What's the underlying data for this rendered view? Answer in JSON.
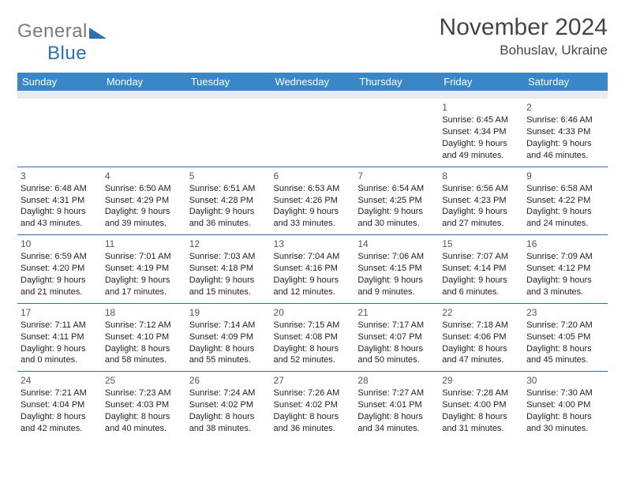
{
  "logo": {
    "part1": "General",
    "part2": "Blue"
  },
  "header": {
    "month_title": "November 2024",
    "location": "Bohuslav, Ukraine"
  },
  "styling": {
    "header_bg": "#3a87c8",
    "header_fg": "#ffffff",
    "cell_border": "#2f6fb0",
    "spacer_bg": "#e9eced",
    "text_color": "#222222",
    "title_color": "#454545",
    "logo_gray": "#7a7a7a",
    "logo_blue": "#2f6fb0",
    "day_header_fontsize": 13,
    "cell_fontsize": 11,
    "title_fontsize": 30
  },
  "day_headers": [
    "Sunday",
    "Monday",
    "Tuesday",
    "Wednesday",
    "Thursday",
    "Friday",
    "Saturday"
  ],
  "weeks": [
    [
      null,
      null,
      null,
      null,
      null,
      {
        "n": "1",
        "sr": "6:45 AM",
        "ss": "4:34 PM",
        "dl": "9 hours and 49 minutes."
      },
      {
        "n": "2",
        "sr": "6:46 AM",
        "ss": "4:33 PM",
        "dl": "9 hours and 46 minutes."
      }
    ],
    [
      {
        "n": "3",
        "sr": "6:48 AM",
        "ss": "4:31 PM",
        "dl": "9 hours and 43 minutes."
      },
      {
        "n": "4",
        "sr": "6:50 AM",
        "ss": "4:29 PM",
        "dl": "9 hours and 39 minutes."
      },
      {
        "n": "5",
        "sr": "6:51 AM",
        "ss": "4:28 PM",
        "dl": "9 hours and 36 minutes."
      },
      {
        "n": "6",
        "sr": "6:53 AM",
        "ss": "4:26 PM",
        "dl": "9 hours and 33 minutes."
      },
      {
        "n": "7",
        "sr": "6:54 AM",
        "ss": "4:25 PM",
        "dl": "9 hours and 30 minutes."
      },
      {
        "n": "8",
        "sr": "6:56 AM",
        "ss": "4:23 PM",
        "dl": "9 hours and 27 minutes."
      },
      {
        "n": "9",
        "sr": "6:58 AM",
        "ss": "4:22 PM",
        "dl": "9 hours and 24 minutes."
      }
    ],
    [
      {
        "n": "10",
        "sr": "6:59 AM",
        "ss": "4:20 PM",
        "dl": "9 hours and 21 minutes."
      },
      {
        "n": "11",
        "sr": "7:01 AM",
        "ss": "4:19 PM",
        "dl": "9 hours and 17 minutes."
      },
      {
        "n": "12",
        "sr": "7:03 AM",
        "ss": "4:18 PM",
        "dl": "9 hours and 15 minutes."
      },
      {
        "n": "13",
        "sr": "7:04 AM",
        "ss": "4:16 PM",
        "dl": "9 hours and 12 minutes."
      },
      {
        "n": "14",
        "sr": "7:06 AM",
        "ss": "4:15 PM",
        "dl": "9 hours and 9 minutes."
      },
      {
        "n": "15",
        "sr": "7:07 AM",
        "ss": "4:14 PM",
        "dl": "9 hours and 6 minutes."
      },
      {
        "n": "16",
        "sr": "7:09 AM",
        "ss": "4:12 PM",
        "dl": "9 hours and 3 minutes."
      }
    ],
    [
      {
        "n": "17",
        "sr": "7:11 AM",
        "ss": "4:11 PM",
        "dl": "9 hours and 0 minutes."
      },
      {
        "n": "18",
        "sr": "7:12 AM",
        "ss": "4:10 PM",
        "dl": "8 hours and 58 minutes."
      },
      {
        "n": "19",
        "sr": "7:14 AM",
        "ss": "4:09 PM",
        "dl": "8 hours and 55 minutes."
      },
      {
        "n": "20",
        "sr": "7:15 AM",
        "ss": "4:08 PM",
        "dl": "8 hours and 52 minutes."
      },
      {
        "n": "21",
        "sr": "7:17 AM",
        "ss": "4:07 PM",
        "dl": "8 hours and 50 minutes."
      },
      {
        "n": "22",
        "sr": "7:18 AM",
        "ss": "4:06 PM",
        "dl": "8 hours and 47 minutes."
      },
      {
        "n": "23",
        "sr": "7:20 AM",
        "ss": "4:05 PM",
        "dl": "8 hours and 45 minutes."
      }
    ],
    [
      {
        "n": "24",
        "sr": "7:21 AM",
        "ss": "4:04 PM",
        "dl": "8 hours and 42 minutes."
      },
      {
        "n": "25",
        "sr": "7:23 AM",
        "ss": "4:03 PM",
        "dl": "8 hours and 40 minutes."
      },
      {
        "n": "26",
        "sr": "7:24 AM",
        "ss": "4:02 PM",
        "dl": "8 hours and 38 minutes."
      },
      {
        "n": "27",
        "sr": "7:26 AM",
        "ss": "4:02 PM",
        "dl": "8 hours and 36 minutes."
      },
      {
        "n": "28",
        "sr": "7:27 AM",
        "ss": "4:01 PM",
        "dl": "8 hours and 34 minutes."
      },
      {
        "n": "29",
        "sr": "7:28 AM",
        "ss": "4:00 PM",
        "dl": "8 hours and 31 minutes."
      },
      {
        "n": "30",
        "sr": "7:30 AM",
        "ss": "4:00 PM",
        "dl": "8 hours and 30 minutes."
      }
    ]
  ],
  "labels": {
    "sunrise": "Sunrise: ",
    "sunset": "Sunset: ",
    "daylight": "Daylight: "
  }
}
